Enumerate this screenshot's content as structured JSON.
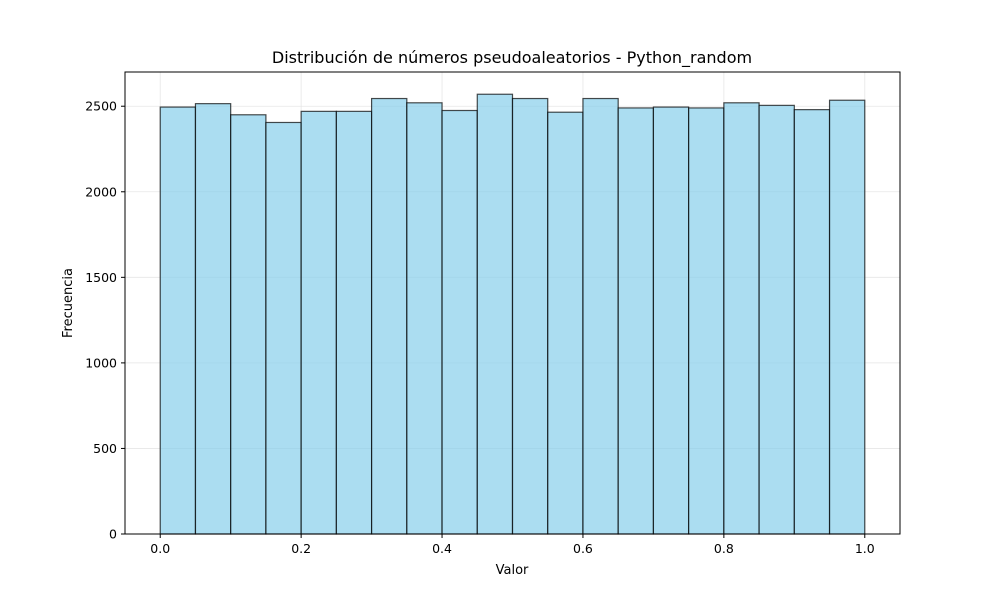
{
  "chart_data": {
    "type": "bar",
    "title": "Distribución de números pseudoaleatorios - Python_random",
    "xlabel": "Valor",
    "ylabel": "Frecuencia",
    "xlim": [
      -0.05,
      1.05
    ],
    "ylim": [
      0,
      2700
    ],
    "grid": true,
    "bin_edges": [
      0.0,
      0.05,
      0.1,
      0.15,
      0.2,
      0.25,
      0.3,
      0.35,
      0.4,
      0.45,
      0.5,
      0.55,
      0.6,
      0.65,
      0.7,
      0.75,
      0.8,
      0.85,
      0.9,
      0.95,
      1.0
    ],
    "values": [
      2495,
      2515,
      2450,
      2405,
      2470,
      2470,
      2545,
      2520,
      2475,
      2570,
      2545,
      2465,
      2545,
      2490,
      2495,
      2490,
      2520,
      2505,
      2480,
      2535
    ],
    "x_ticks": [
      {
        "value": 0.0,
        "label": "0.0"
      },
      {
        "value": 0.2,
        "label": "0.2"
      },
      {
        "value": 0.4,
        "label": "0.4"
      },
      {
        "value": 0.6,
        "label": "0.6"
      },
      {
        "value": 0.8,
        "label": "0.8"
      },
      {
        "value": 1.0,
        "label": "1.0"
      }
    ],
    "y_ticks": [
      {
        "value": 0,
        "label": "0"
      },
      {
        "value": 500,
        "label": "500"
      },
      {
        "value": 1000,
        "label": "1000"
      },
      {
        "value": 1500,
        "label": "1500"
      },
      {
        "value": 2000,
        "label": "2000"
      },
      {
        "value": 2500,
        "label": "2500"
      }
    ],
    "colors": {
      "bar_fill": "#87ceeb",
      "bar_edge": "#000000",
      "grid": "#e6e6e6",
      "axis": "#000000"
    }
  }
}
